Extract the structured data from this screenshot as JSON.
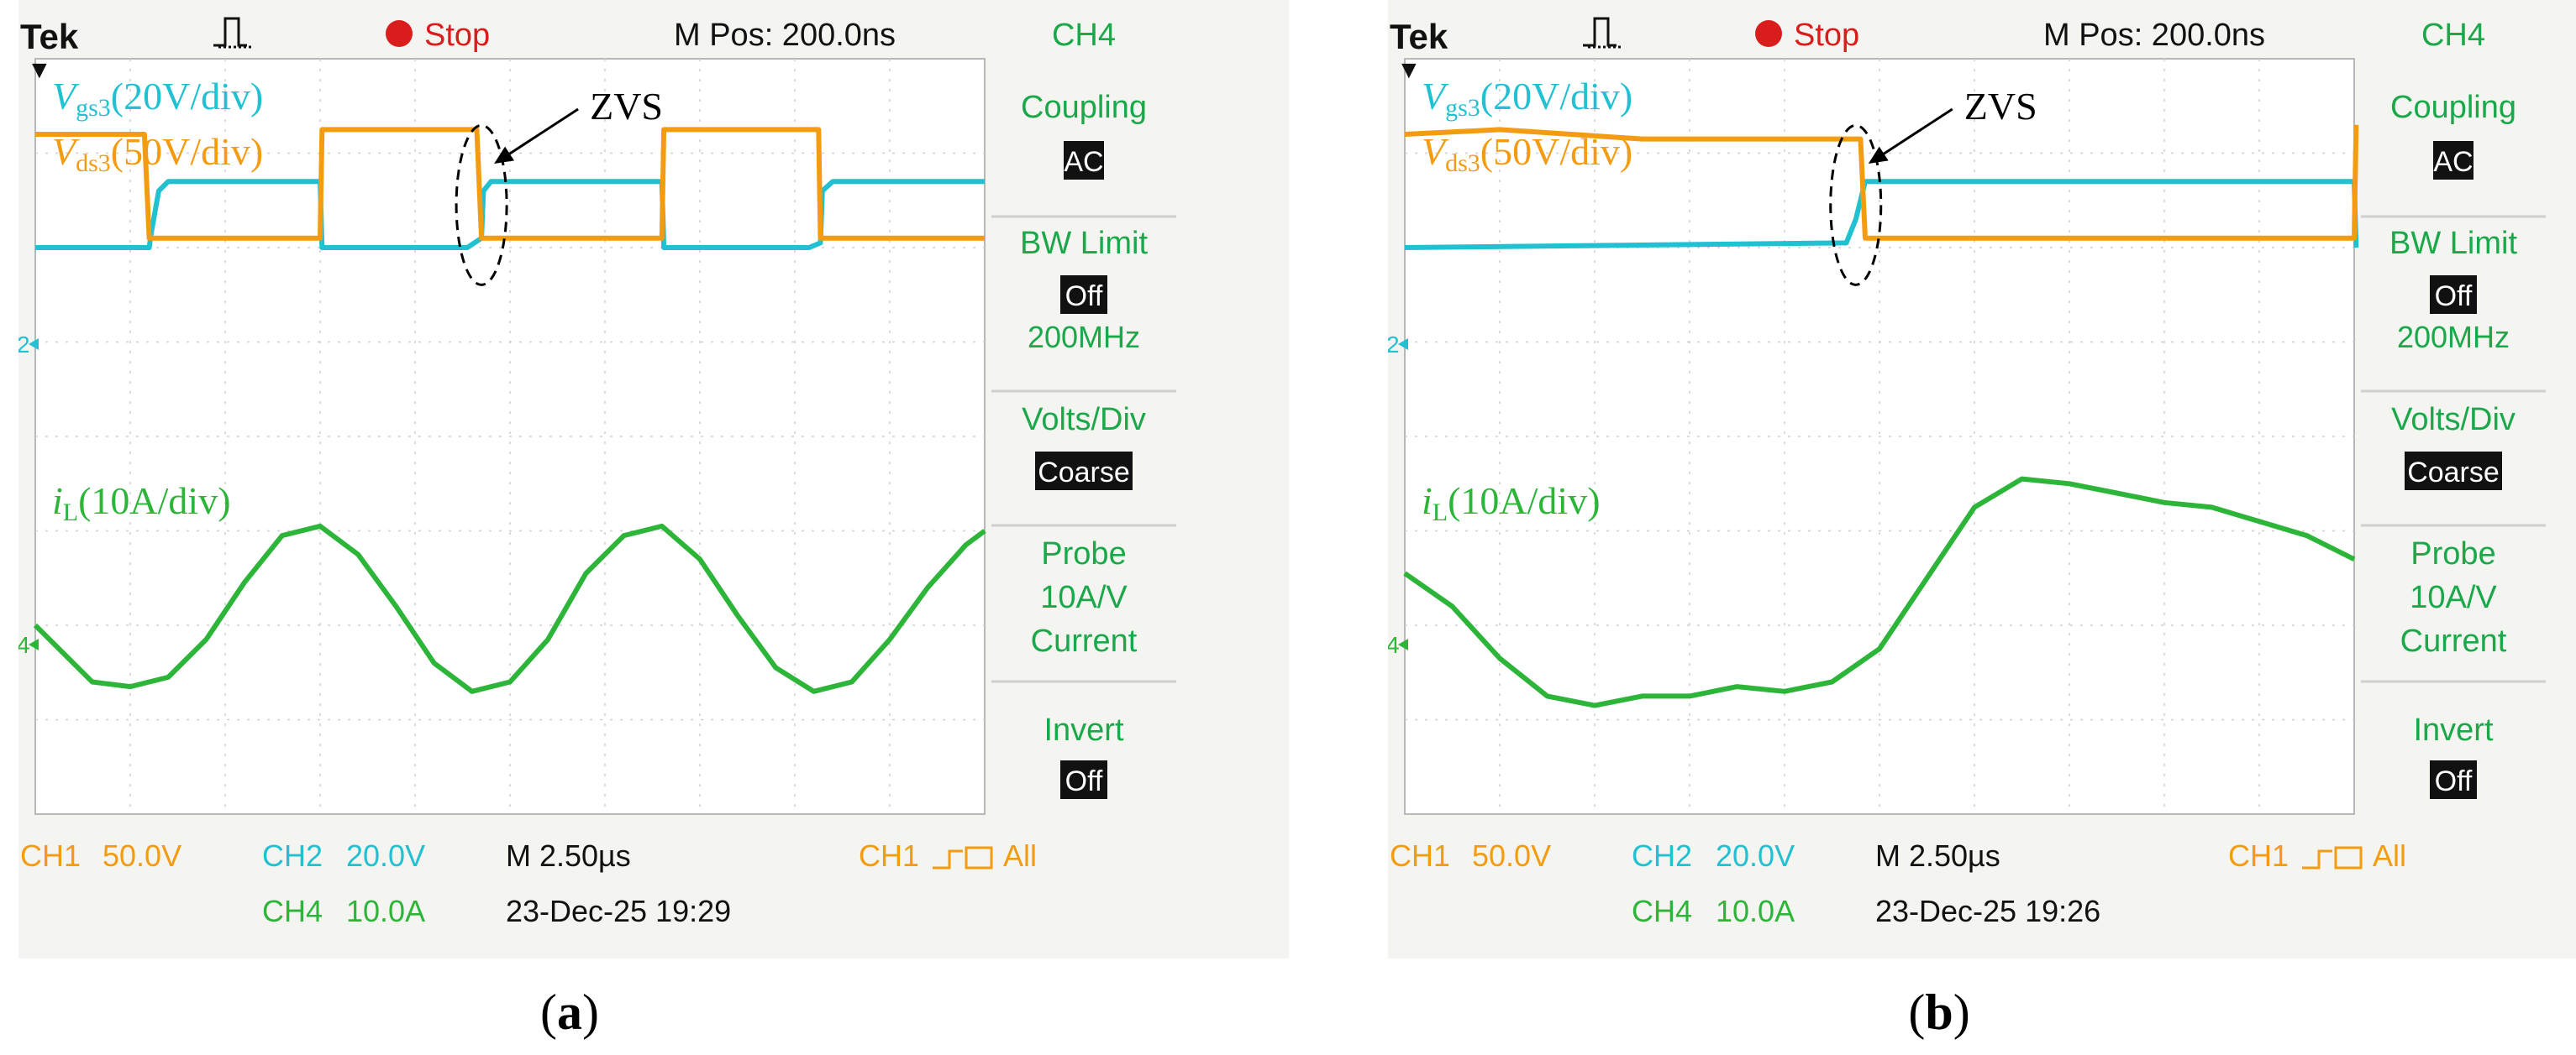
{
  "colors": {
    "ch1": "#f39c12",
    "ch2": "#22c1d2",
    "ch4": "#2db53a",
    "bezel": "#f4f4f1",
    "menu_text": "#1aa84a",
    "menu_box_bg": "#111111",
    "annotation": "#000000"
  },
  "panels": [
    {
      "id": "a",
      "caption": "a",
      "header": {
        "brand": "Tek",
        "trigger_glyph": "trigger-pulse-icon",
        "run_state": "Stop",
        "mpos": "M Pos: 200.0ns",
        "channel": "CH4"
      },
      "labels": {
        "vgs_main": "V",
        "vgs_sub": "gs3",
        "vgs_rest": "(20V/div)",
        "vds_main": "V",
        "vds_sub": "ds3",
        "vds_rest": "(50V/div)",
        "il_main": "i",
        "il_sub": "L",
        "il_rest": "(10A/div)",
        "zvs": "ZVS"
      },
      "menu": {
        "coupling_label": "Coupling",
        "coupling_value": "AC",
        "bw_label": "BW Limit",
        "bw_value": "Off",
        "bw_freq": "200MHz",
        "volts_label": "Volts/Div",
        "volts_value": "Coarse",
        "probe_label": "Probe",
        "probe_ratio": "10A/V",
        "probe_type": "Current",
        "invert_label": "Invert",
        "invert_value": "Off"
      },
      "footer": {
        "ch1": "CH1",
        "ch1_scale": "50.0V",
        "ch2": "CH2",
        "ch2_scale": "20.0V",
        "ch4": "CH4",
        "ch4_scale": "10.0A",
        "timebase": "M 2.50µs",
        "trig_ch": "CH1",
        "trig_mode": "All",
        "datetime": "23-Dec-25 19:29"
      },
      "markers": {
        "ch2": "2",
        "ch4": "4"
      }
    },
    {
      "id": "b",
      "caption": "b",
      "header": {
        "brand": "Tek",
        "trigger_glyph": "trigger-pulse-icon",
        "run_state": "Stop",
        "mpos": "M Pos: 200.0ns",
        "channel": "CH4"
      },
      "labels": {
        "vgs_main": "V",
        "vgs_sub": "gs3",
        "vgs_rest": "(20V/div)",
        "vds_main": "V",
        "vds_sub": "ds3",
        "vds_rest": "(50V/div)",
        "il_main": "i",
        "il_sub": "L",
        "il_rest": "(10A/div)",
        "zvs": "ZVS"
      },
      "menu": {
        "coupling_label": "Coupling",
        "coupling_value": "AC",
        "bw_label": "BW Limit",
        "bw_value": "Off",
        "bw_freq": "200MHz",
        "volts_label": "Volts/Div",
        "volts_value": "Coarse",
        "probe_label": "Probe",
        "probe_ratio": "10A/V",
        "probe_type": "Current",
        "invert_label": "Invert",
        "invert_value": "Off"
      },
      "footer": {
        "ch1": "CH1",
        "ch1_scale": "50.0V",
        "ch2": "CH2",
        "ch2_scale": "20.0V",
        "ch4": "CH4",
        "ch4_scale": "10.0A",
        "timebase": "M 2.50µs",
        "trig_ch": "CH1",
        "trig_mode": "All",
        "datetime": "23-Dec-25 19:26"
      },
      "markers": {
        "ch2": "2",
        "ch4": "4"
      }
    }
  ],
  "chart_data": [
    {
      "type": "line",
      "panel": "a",
      "grid": true,
      "xlim": [
        0,
        10
      ],
      "ylim": [
        -4,
        4
      ],
      "x_unit": "div",
      "y_unit": "div",
      "series": [
        {
          "name": "V gs3 (20V/div)",
          "color_key": "ch2",
          "x": [
            0,
            1.2,
            1.22,
            1.3,
            1.4,
            3.0,
            3.02,
            4.55,
            4.7,
            4.72,
            4.8,
            6.6,
            6.62,
            8.15,
            8.27,
            8.29,
            8.4,
            10
          ],
          "y": [
            2.0,
            2.0,
            2.15,
            2.6,
            2.7,
            2.7,
            2.0,
            2.0,
            2.1,
            2.6,
            2.7,
            2.7,
            2.0,
            2.0,
            2.05,
            2.6,
            2.7,
            2.7
          ]
        },
        {
          "name": "V ds3 (50V/div)",
          "color_key": "ch1",
          "x": [
            0,
            1.15,
            1.2,
            3.0,
            3.02,
            4.65,
            4.7,
            6.6,
            6.62,
            8.25,
            8.27,
            10
          ],
          "y": [
            3.2,
            3.2,
            2.1,
            2.1,
            3.25,
            3.25,
            2.1,
            2.1,
            3.25,
            3.25,
            2.1,
            2.1
          ]
        },
        {
          "name": "i L (10A/div)",
          "color_key": "ch4",
          "x": [
            0,
            0.6,
            1.0,
            1.4,
            1.8,
            2.2,
            2.6,
            3.0,
            3.4,
            3.8,
            4.2,
            4.6,
            5.0,
            5.4,
            5.8,
            6.2,
            6.6,
            7.0,
            7.4,
            7.8,
            8.2,
            8.6,
            9.0,
            9.4,
            9.8,
            10
          ],
          "y": [
            -2.0,
            -2.6,
            -2.65,
            -2.55,
            -2.15,
            -1.55,
            -1.05,
            -0.95,
            -1.25,
            -1.8,
            -2.4,
            -2.7,
            -2.6,
            -2.15,
            -1.45,
            -1.05,
            -0.95,
            -1.3,
            -1.9,
            -2.45,
            -2.7,
            -2.6,
            -2.15,
            -1.6,
            -1.15,
            -1.0
          ]
        }
      ],
      "annotations": [
        {
          "text": "ZVS",
          "target_x": 4.7,
          "target_y": 2.7
        }
      ]
    },
    {
      "type": "line",
      "panel": "b",
      "grid": true,
      "xlim": [
        0,
        10
      ],
      "ylim": [
        -4,
        4
      ],
      "x_unit": "div",
      "y_unit": "div",
      "series": [
        {
          "name": "V gs3 (20V/div)",
          "color_key": "ch2",
          "x": [
            0,
            4.65,
            4.75,
            4.85,
            10.0,
            10.02
          ],
          "y": [
            2.0,
            2.05,
            2.3,
            2.7,
            2.7,
            2.0
          ]
        },
        {
          "name": "V ds3 (50V/div)",
          "color_key": "ch1",
          "x": [
            0,
            1.0,
            2.5,
            4.8,
            4.85,
            10.0,
            10.02
          ],
          "y": [
            3.2,
            3.25,
            3.15,
            3.15,
            2.1,
            2.1,
            3.3
          ]
        },
        {
          "name": "i L (10A/div)",
          "color_key": "ch4",
          "x": [
            0,
            0.5,
            1.0,
            1.5,
            2.0,
            2.5,
            3.0,
            3.5,
            4.0,
            4.5,
            5.0,
            5.5,
            6.0,
            6.5,
            7.0,
            7.5,
            8.0,
            8.5,
            9.0,
            9.5,
            10
          ],
          "y": [
            -1.45,
            -1.8,
            -2.35,
            -2.75,
            -2.85,
            -2.75,
            -2.75,
            -2.65,
            -2.7,
            -2.6,
            -2.25,
            -1.5,
            -0.75,
            -0.45,
            -0.5,
            -0.6,
            -0.7,
            -0.75,
            -0.9,
            -1.05,
            -1.3
          ]
        }
      ],
      "annotations": [
        {
          "text": "ZVS",
          "target_x": 4.75,
          "target_y": 2.7
        }
      ]
    }
  ]
}
